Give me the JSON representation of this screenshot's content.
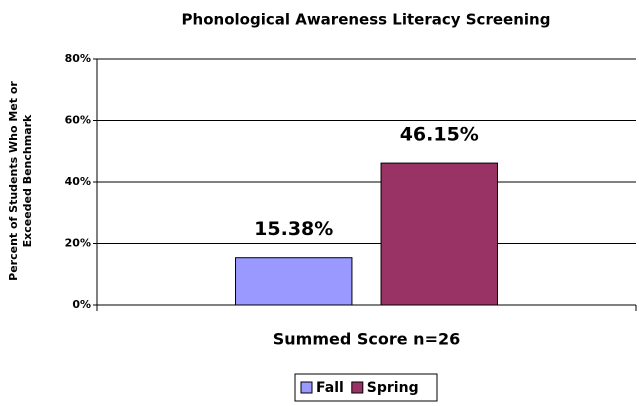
{
  "chart_data": {
    "type": "bar",
    "title": "Phonological Awareness Literacy Screening",
    "y_label": "Percent of Students Who Met or Exceeded Benchmark",
    "categories": [
      "Summed Score n=26"
    ],
    "series": [
      {
        "name": "Fall",
        "color": "#9999ff",
        "values": [
          15.38
        ],
        "value_labels": [
          "15.38%"
        ]
      },
      {
        "name": "Spring",
        "color": "#993366",
        "values": [
          46.15
        ],
        "value_labels": [
          "46.15%"
        ]
      }
    ],
    "ylim": [
      0,
      80
    ],
    "yticks": [
      {
        "value": 0,
        "label": "0%"
      },
      {
        "value": 20,
        "label": "20%"
      },
      {
        "value": 40,
        "label": "40%"
      },
      {
        "value": 60,
        "label": "60%"
      },
      {
        "value": 80,
        "label": "80%"
      }
    ],
    "grid": true,
    "legend": "bottom"
  }
}
